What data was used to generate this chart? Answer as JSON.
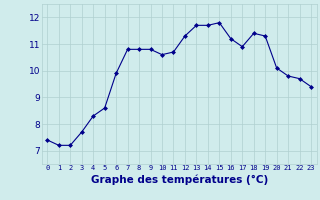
{
  "hours": [
    0,
    1,
    2,
    3,
    4,
    5,
    6,
    7,
    8,
    9,
    10,
    11,
    12,
    13,
    14,
    15,
    16,
    17,
    18,
    19,
    20,
    21,
    22,
    23
  ],
  "temps": [
    7.4,
    7.2,
    7.2,
    7.7,
    8.3,
    8.6,
    9.9,
    10.8,
    10.8,
    10.8,
    10.6,
    10.7,
    11.3,
    11.7,
    11.7,
    11.8,
    11.2,
    10.9,
    11.4,
    11.3,
    10.1,
    9.8,
    9.7,
    9.4
  ],
  "xlabel": "Graphe des températures (°C)",
  "xlim": [
    -0.5,
    23.5
  ],
  "ylim": [
    6.5,
    12.5
  ],
  "yticks": [
    7,
    8,
    9,
    10,
    11,
    12
  ],
  "xtick_labels": [
    "0",
    "1",
    "2",
    "3",
    "4",
    "5",
    "6",
    "7",
    "8",
    "9",
    "10",
    "11",
    "12",
    "13",
    "14",
    "15",
    "16",
    "17",
    "18",
    "19",
    "20",
    "21",
    "22",
    "23"
  ],
  "line_color": "#00008b",
  "marker": "D",
  "marker_size": 2.0,
  "bg_color": "#d0ecec",
  "grid_color": "#b0d0d0",
  "xlabel_fontsize": 7.5,
  "xtick_fontsize": 5.0,
  "ytick_fontsize": 6.5
}
